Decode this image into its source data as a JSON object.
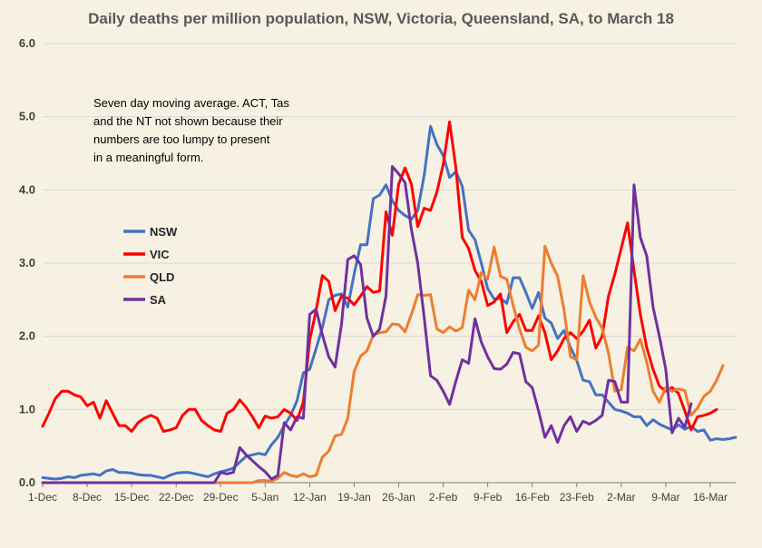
{
  "chart_data": {
    "type": "line",
    "title": "Daily deaths per million population, NSW, Victoria, Queensland, SA, to March 18",
    "ylim": [
      0,
      6
    ],
    "yticks": [
      "0.0",
      "1.0",
      "2.0",
      "3.0",
      "4.0",
      "5.0",
      "6.0"
    ],
    "grid": "horizontal",
    "x_start": "1-Dec",
    "x_end": "18-Mar",
    "xticks": [
      "1-Dec",
      "8-Dec",
      "15-Dec",
      "22-Dec",
      "29-Dec",
      "5-Jan",
      "12-Jan",
      "19-Jan",
      "26-Jan",
      "2-Feb",
      "9-Feb",
      "16-Feb",
      "23-Feb",
      "2-Mar",
      "9-Mar",
      "16-Mar"
    ],
    "annotation": [
      "Seven day moving average. ACT, Tas",
      "and the NT not shown because their",
      "numbers are too lumpy to present",
      "in a meaningful form."
    ],
    "legend_position": "left",
    "series": [
      {
        "name": "NSW",
        "color": "#4472c4",
        "values": [
          0.07,
          0.06,
          0.05,
          0.06,
          0.08,
          0.07,
          0.1,
          0.11,
          0.12,
          0.1,
          0.16,
          0.18,
          0.14,
          0.14,
          0.13,
          0.11,
          0.1,
          0.1,
          0.08,
          0.06,
          0.1,
          0.13,
          0.14,
          0.14,
          0.12,
          0.1,
          0.08,
          0.12,
          0.15,
          0.17,
          0.2,
          0.28,
          0.36,
          0.38,
          0.4,
          0.38,
          0.52,
          0.62,
          0.78,
          0.92,
          1.12,
          1.5,
          1.55,
          1.83,
          2.12,
          2.5,
          2.56,
          2.58,
          2.4,
          2.85,
          3.25,
          3.25,
          3.88,
          3.93,
          4.07,
          3.85,
          3.72,
          3.65,
          3.6,
          3.72,
          4.2,
          4.87,
          4.62,
          4.47,
          4.17,
          4.25,
          4.05,
          3.45,
          3.32,
          3.0,
          2.65,
          2.51,
          2.52,
          2.45,
          2.8,
          2.8,
          2.6,
          2.38,
          2.6,
          2.25,
          2.18,
          1.97,
          2.08,
          1.85,
          1.67,
          1.4,
          1.38,
          1.2,
          1.2,
          1.1,
          1.0,
          0.98,
          0.95,
          0.9,
          0.9,
          0.78,
          0.86,
          0.8,
          0.76,
          0.72,
          0.79,
          0.73,
          0.77,
          0.7,
          0.72,
          0.58,
          0.6,
          0.59,
          0.6,
          0.62
        ]
      },
      {
        "name": "VIC",
        "color": "#ff0000",
        "values": [
          0.77,
          0.95,
          1.15,
          1.25,
          1.25,
          1.2,
          1.17,
          1.05,
          1.1,
          0.88,
          1.12,
          0.95,
          0.78,
          0.78,
          0.7,
          0.82,
          0.88,
          0.92,
          0.88,
          0.7,
          0.72,
          0.75,
          0.92,
          1.0,
          1.0,
          0.85,
          0.78,
          0.72,
          0.7,
          0.95,
          1.0,
          1.13,
          1.03,
          0.9,
          0.75,
          0.91,
          0.88,
          0.9,
          1.0,
          0.95,
          0.85,
          1.1,
          1.95,
          2.35,
          2.83,
          2.75,
          2.35,
          2.55,
          2.52,
          2.43,
          2.55,
          2.68,
          2.6,
          2.62,
          3.7,
          3.38,
          4.08,
          4.3,
          4.08,
          3.5,
          3.75,
          3.72,
          3.97,
          4.35,
          4.93,
          4.3,
          3.35,
          3.2,
          2.9,
          2.75,
          2.42,
          2.47,
          2.58,
          2.05,
          2.2,
          2.3,
          2.08,
          2.08,
          2.28,
          2.05,
          1.68,
          1.8,
          1.97,
          2.05,
          1.97,
          2.07,
          2.22,
          1.84,
          2.0,
          2.55,
          2.85,
          3.2,
          3.55,
          2.9,
          2.3,
          1.85,
          1.55,
          1.32,
          1.25,
          1.3,
          1.22,
          0.98,
          0.72,
          0.9,
          0.92,
          0.95,
          1.0
        ]
      },
      {
        "name": "QLD",
        "color": "#ed7d31",
        "values": [
          0.0,
          0.0,
          0.0,
          0.0,
          0.0,
          0.0,
          0.0,
          0.0,
          0.0,
          0.0,
          0.0,
          0.0,
          0.0,
          0.0,
          0.0,
          0.0,
          0.0,
          0.0,
          0.0,
          0.0,
          0.0,
          0.0,
          0.0,
          0.0,
          0.0,
          0.0,
          0.0,
          0.0,
          0.0,
          0.0,
          0.0,
          0.0,
          0.0,
          0.0,
          0.03,
          0.03,
          0.02,
          0.06,
          0.14,
          0.1,
          0.08,
          0.12,
          0.08,
          0.1,
          0.35,
          0.43,
          0.64,
          0.66,
          0.88,
          1.52,
          1.73,
          1.8,
          2.02,
          2.05,
          2.06,
          2.17,
          2.16,
          2.06,
          2.3,
          2.57,
          2.56,
          2.57,
          2.1,
          2.05,
          2.13,
          2.07,
          2.12,
          2.63,
          2.5,
          2.87,
          2.78,
          3.22,
          2.82,
          2.78,
          2.42,
          2.1,
          1.85,
          1.8,
          1.88,
          3.23,
          3.0,
          2.82,
          2.36,
          1.72,
          1.68,
          2.83,
          2.47,
          2.26,
          2.11,
          1.77,
          1.25,
          1.27,
          1.85,
          1.8,
          1.96,
          1.65,
          1.25,
          1.1,
          1.3,
          1.25,
          1.28,
          1.26,
          0.92,
          1.02,
          1.18,
          1.25,
          1.4,
          1.6
        ]
      },
      {
        "name": "SA",
        "color": "#7030a0",
        "values": [
          0.0,
          0.0,
          0.0,
          0.0,
          0.0,
          0.0,
          0.0,
          0.0,
          0.0,
          0.0,
          0.0,
          0.0,
          0.0,
          0.0,
          0.0,
          0.0,
          0.0,
          0.0,
          0.0,
          0.0,
          0.0,
          0.0,
          0.0,
          0.0,
          0.0,
          0.0,
          0.0,
          0.0,
          0.14,
          0.12,
          0.14,
          0.48,
          0.38,
          0.3,
          0.22,
          0.15,
          0.05,
          0.1,
          0.82,
          0.72,
          0.9,
          0.88,
          2.3,
          2.37,
          2.02,
          1.72,
          1.58,
          2.16,
          3.05,
          3.1,
          2.98,
          2.25,
          2.0,
          2.1,
          2.55,
          4.32,
          4.22,
          4.1,
          3.46,
          3.0,
          2.26,
          1.46,
          1.4,
          1.25,
          1.07,
          1.39,
          1.68,
          1.63,
          2.24,
          1.92,
          1.72,
          1.56,
          1.55,
          1.62,
          1.78,
          1.76,
          1.38,
          1.3,
          0.98,
          0.62,
          0.78,
          0.55,
          0.78,
          0.9,
          0.7,
          0.84,
          0.8,
          0.85,
          0.92,
          1.4,
          1.38,
          1.1,
          1.1,
          4.07,
          3.35,
          3.1,
          2.4,
          2.0,
          1.55,
          0.68,
          0.88,
          0.76,
          1.08
        ]
      }
    ]
  }
}
